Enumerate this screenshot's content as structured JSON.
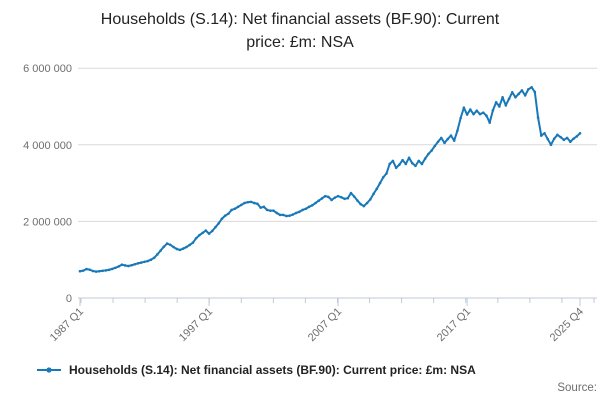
{
  "title": {
    "line1": "Households (S.14): Net financial assets (BF.90): Current",
    "line2": "price: £m: NSA"
  },
  "legend": {
    "label": "Households (S.14): Net financial assets (BF.90): Current price: £m: NSA"
  },
  "source": {
    "label": "Source:"
  },
  "colors": {
    "line": "#1878b8",
    "grid": "#d9d9d9",
    "axis": "#becbdb",
    "axis_text": "#6e6e6e",
    "title_text": "#222222"
  },
  "chart_data": {
    "type": "line",
    "title": "Households (S.14): Net financial assets (BF.90): Current price: £m: NSA",
    "xlabel": "",
    "ylabel": "",
    "y_unit": "£m",
    "ylim": [
      0,
      6000000
    ],
    "grid": "horizontal",
    "legend_position": "bottom-left",
    "y_ticks": [
      {
        "value": 0,
        "label": "0"
      },
      {
        "value": 2000000,
        "label": "2 000 000"
      },
      {
        "value": 4000000,
        "label": "4 000 000"
      },
      {
        "value": 6000000,
        "label": "6 000 000"
      }
    ],
    "x_ticks": [
      {
        "label": "1987 Q1",
        "index": 0
      },
      {
        "label": "1997 Q1",
        "index": 40
      },
      {
        "label": "2007 Q1",
        "index": 80
      },
      {
        "label": "2017 Q1",
        "index": 120
      },
      {
        "label": "2025 Q4",
        "index": 155
      }
    ],
    "series": [
      {
        "name": "Households (S.14): Net financial assets (BF.90): Current price: £m: NSA",
        "frequency": "quarterly",
        "start": "1987 Q1",
        "end": "2025 Q4",
        "values": [
          700000,
          715000,
          755000,
          740000,
          705000,
          690000,
          700000,
          710000,
          720000,
          735000,
          760000,
          790000,
          825000,
          870000,
          850000,
          835000,
          855000,
          880000,
          905000,
          925000,
          945000,
          965000,
          1000000,
          1050000,
          1140000,
          1240000,
          1340000,
          1420000,
          1390000,
          1330000,
          1280000,
          1255000,
          1290000,
          1330000,
          1385000,
          1445000,
          1560000,
          1640000,
          1700000,
          1760000,
          1680000,
          1750000,
          1850000,
          1950000,
          2070000,
          2150000,
          2200000,
          2300000,
          2330000,
          2380000,
          2430000,
          2480000,
          2500000,
          2510000,
          2480000,
          2460000,
          2360000,
          2380000,
          2300000,
          2280000,
          2280000,
          2220000,
          2170000,
          2170000,
          2140000,
          2150000,
          2180000,
          2220000,
          2250000,
          2300000,
          2330000,
          2380000,
          2420000,
          2480000,
          2540000,
          2600000,
          2660000,
          2640000,
          2560000,
          2620000,
          2660000,
          2630000,
          2590000,
          2605000,
          2740000,
          2650000,
          2545000,
          2450000,
          2400000,
          2480000,
          2575000,
          2720000,
          2850000,
          3000000,
          3150000,
          3250000,
          3500000,
          3580000,
          3400000,
          3480000,
          3600000,
          3500000,
          3660000,
          3520000,
          3450000,
          3580000,
          3500000,
          3640000,
          3760000,
          3850000,
          3970000,
          4080000,
          4180000,
          4050000,
          4150000,
          4240000,
          4110000,
          4370000,
          4700000,
          4970000,
          4790000,
          4920000,
          4800000,
          4890000,
          4800000,
          4840000,
          4760000,
          4580000,
          4900000,
          5110000,
          5000000,
          5240000,
          5030000,
          5200000,
          5370000,
          5240000,
          5330000,
          5420000,
          5290000,
          5450000,
          5500000,
          5380000,
          4710000,
          4240000,
          4300000,
          4150000,
          4000000,
          4160000,
          4260000,
          4200000,
          4130000,
          4180000,
          4080000,
          4160000,
          4220000,
          4300000
        ]
      }
    ]
  }
}
